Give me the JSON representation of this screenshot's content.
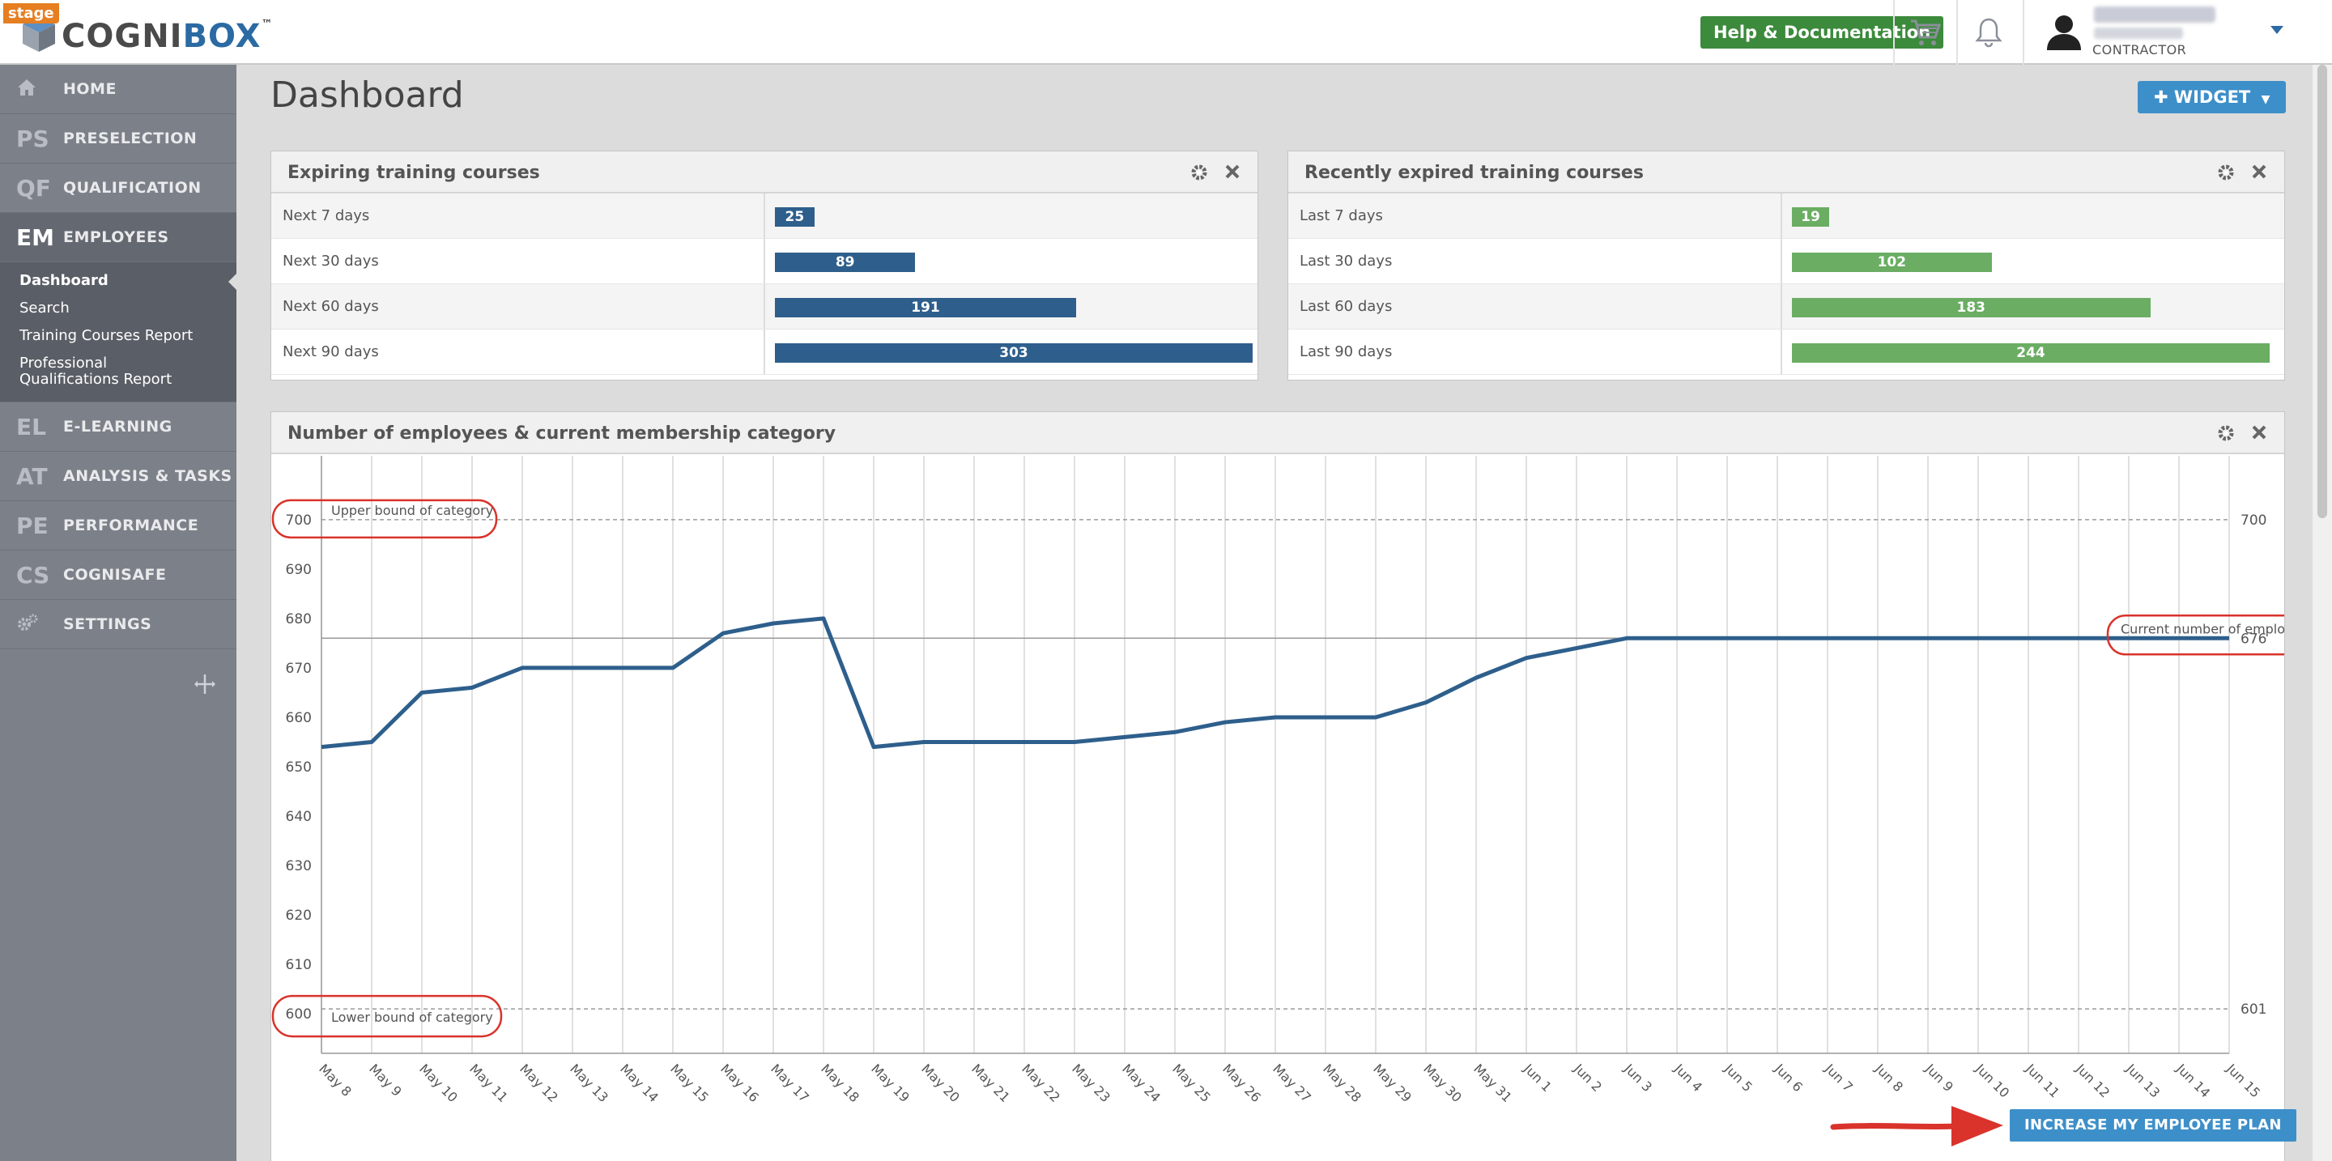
{
  "app": {
    "stage_badge": "stage",
    "logo_prefix": "COGNI",
    "logo_suffix": "BOX",
    "logo_tm": "™"
  },
  "topbar": {
    "help_label": "Help & Documentation",
    "user_role": "CONTRACTOR"
  },
  "sidebar": {
    "items": [
      {
        "abbr": "",
        "label": "HOME",
        "icon": "home-icon"
      },
      {
        "abbr": "PS",
        "label": "PRESELECTION"
      },
      {
        "abbr": "QF",
        "label": "QUALIFICATION"
      },
      {
        "abbr": "EM",
        "label": "EMPLOYEES"
      },
      {
        "abbr": "EL",
        "label": "E-LEARNING"
      },
      {
        "abbr": "AT",
        "label": "ANALYSIS & TASKS"
      },
      {
        "abbr": "PE",
        "label": "PERFORMANCE"
      },
      {
        "abbr": "CS",
        "label": "COGNISAFE"
      },
      {
        "abbr": "",
        "label": "SETTINGS",
        "icon": "gear-icon"
      }
    ],
    "employees_sub": [
      "Dashboard",
      "Search",
      "Training Courses Report",
      "Professional Qualifications Report"
    ]
  },
  "main": {
    "page_title": "Dashboard",
    "widget_label": "WIDGET",
    "increase_label": "INCREASE MY EMPLOYEE PLAN"
  },
  "expiring": {
    "title": "Expiring training courses",
    "max": 303,
    "rows": [
      {
        "label": "Next 7 days",
        "value": "25"
      },
      {
        "label": "Next 30 days",
        "value": "89"
      },
      {
        "label": "Next 60 days",
        "value": "191"
      },
      {
        "label": "Next 90 days",
        "value": "303"
      }
    ]
  },
  "expired": {
    "title": "Recently expired training courses",
    "max": 244,
    "rows": [
      {
        "label": "Last 7 days",
        "value": "19"
      },
      {
        "label": "Last 30 days",
        "value": "102"
      },
      {
        "label": "Last 60 days",
        "value": "183"
      },
      {
        "label": "Last 90 days",
        "value": "244"
      }
    ]
  },
  "colors": {
    "blue_bar": "#2e5f8c",
    "green_bar": "#6aad63",
    "line": "#2e5f8c",
    "annotation": "#d9332b"
  },
  "chart_data": {
    "type": "line",
    "title": "Number of employees & current membership category",
    "x": [
      "May 8",
      "May 9",
      "May 10",
      "May 11",
      "May 12",
      "May 13",
      "May 14",
      "May 15",
      "May 16",
      "May 17",
      "May 18",
      "May 19",
      "May 20",
      "May 21",
      "May 22",
      "May 23",
      "May 24",
      "May 25",
      "May 26",
      "May 27",
      "May 28",
      "May 29",
      "May 30",
      "May 31",
      "Jun 1",
      "Jun 2",
      "Jun 3",
      "Jun 4",
      "Jun 5",
      "Jun 6",
      "Jun 7",
      "Jun 8",
      "Jun 9",
      "Jun 10",
      "Jun 11",
      "Jun 12",
      "Jun 13",
      "Jun 14",
      "Jun 15"
    ],
    "series": [
      {
        "values": [
          654,
          655,
          665,
          666,
          670,
          670,
          670,
          670,
          677,
          679,
          680,
          654,
          655,
          655,
          655,
          655,
          656,
          657,
          659,
          660,
          660,
          660,
          663,
          668,
          672,
          674,
          676,
          676,
          676,
          676,
          676,
          676,
          676,
          676,
          676,
          676,
          676,
          676,
          676
        ]
      }
    ],
    "ylim": [
      592,
      708
    ],
    "yticks": [
      600,
      610,
      620,
      630,
      640,
      650,
      660,
      670,
      680,
      690,
      700
    ],
    "right_ticks": [
      "700",
      "676",
      "601"
    ],
    "reference_lines": [
      {
        "value": 700,
        "label": "Upper bound of category"
      },
      {
        "value": 676,
        "label": "Current number of employees"
      },
      {
        "value": 601,
        "label": "Lower bound of category"
      }
    ],
    "grid": true
  }
}
